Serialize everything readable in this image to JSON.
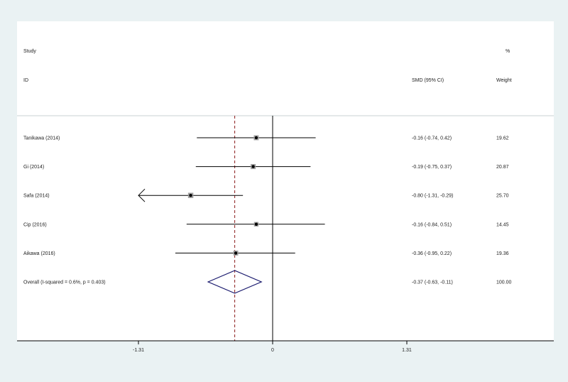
{
  "header": {
    "study_label": "Study",
    "id_label": "ID",
    "percent_label": "%",
    "ci_label": "SMD (95% CI)",
    "weight_label": "Weight"
  },
  "chart_data": {
    "type": "forest",
    "xticks": [
      -1.31,
      0,
      1.31
    ],
    "xtick_labels": [
      "-1.31",
      "0",
      "1.31"
    ],
    "xlim": [
      -2.62,
      2.73
    ],
    "null_line": 0,
    "overall_line": -0.37,
    "studies": [
      {
        "label": "Tanikawa  (2014)",
        "smd": -0.16,
        "lo": -0.74,
        "hi": 0.42,
        "ci_text": "-0.16 (-0.74, 0.42)",
        "weight": "19.62",
        "w": 19.62,
        "arrow_left": false
      },
      {
        "label": "Gi (2014)",
        "smd": -0.19,
        "lo": -0.75,
        "hi": 0.37,
        "ci_text": "-0.19 (-0.75, 0.37)",
        "weight": "20.87",
        "w": 20.87,
        "arrow_left": false
      },
      {
        "label": "Safa (2014)",
        "smd": -0.8,
        "lo": -1.31,
        "hi": -0.29,
        "ci_text": "-0.80 (-1.31, -0.29)",
        "weight": "25.70",
        "w": 25.7,
        "arrow_left": true
      },
      {
        "label": "Cip  (2016)",
        "smd": -0.16,
        "lo": -0.84,
        "hi": 0.51,
        "ci_text": "-0.16 (-0.84, 0.51)",
        "weight": "14.45",
        "w": 14.45,
        "arrow_left": false
      },
      {
        "label": "Aikawa (2016)",
        "smd": -0.36,
        "lo": -0.95,
        "hi": 0.22,
        "ci_text": "-0.36 (-0.95, 0.22)",
        "weight": "19.36",
        "w": 19.36,
        "arrow_left": false
      }
    ],
    "overall": {
      "label": "Overall  (I-squared = 0.6%, p = 0.403)",
      "smd": -0.37,
      "lo": -0.63,
      "hi": -0.11,
      "ci_text": "-0.37 (-0.63, -0.11)",
      "weight": "100.00"
    },
    "colors": {
      "background": "#eaf2f3",
      "panel": "#ffffff",
      "lines": "#000000",
      "box": "#a0a0a0",
      "diamond": "#1a1a6e",
      "overall_line": "#8b1a1a",
      "separator": "#c9d2d3"
    }
  }
}
